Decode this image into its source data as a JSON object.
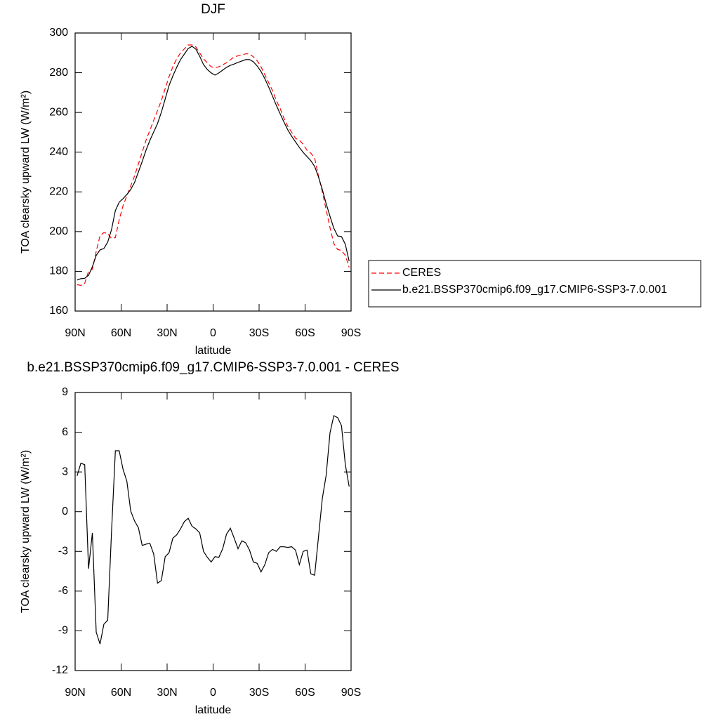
{
  "chart_data": [
    {
      "type": "line",
      "title": "DJF",
      "xlabel": "latitude",
      "ylabel": "TOA clearsky upward LW (W/m²)",
      "x": [
        88.75,
        86.25,
        83.75,
        81.25,
        78.75,
        76.25,
        73.75,
        71.25,
        68.75,
        66.25,
        63.75,
        61.25,
        58.75,
        56.25,
        53.75,
        51.25,
        48.75,
        46.25,
        43.75,
        41.25,
        38.75,
        36.25,
        33.75,
        31.25,
        28.75,
        26.25,
        23.75,
        21.25,
        18.75,
        16.25,
        13.75,
        11.25,
        8.75,
        6.25,
        3.75,
        1.25,
        -1.25,
        -3.75,
        -6.25,
        -8.75,
        -11.25,
        -13.75,
        -16.25,
        -18.75,
        -21.25,
        -23.75,
        -26.25,
        -28.75,
        -31.25,
        -33.75,
        -36.25,
        -38.75,
        -41.25,
        -43.75,
        -46.25,
        -48.75,
        -51.25,
        -53.75,
        -56.25,
        -58.75,
        -61.25,
        -63.75,
        -66.25,
        -68.75,
        -71.25,
        -73.75,
        -76.25,
        -78.75,
        -81.25,
        -83.75,
        -86.25,
        -88.75
      ],
      "xlim": [
        90,
        -90
      ],
      "xticks": [
        {
          "value": 90,
          "label": "90N"
        },
        {
          "value": 60,
          "label": "60N"
        },
        {
          "value": 30,
          "label": "30N"
        },
        0,
        {
          "value": -30,
          "label": "30S"
        },
        {
          "value": -60,
          "label": "60S"
        },
        {
          "value": -90,
          "label": "90S"
        }
      ],
      "ylim": [
        160,
        300
      ],
      "yticks": [
        160,
        180,
        200,
        220,
        240,
        260,
        280,
        300
      ],
      "legend": "right",
      "series": [
        {
          "name": "CERES",
          "color": "#ff0000",
          "dashed": true,
          "values": [
            173.3,
            172.9,
            174,
            180,
            181,
            190,
            198,
            199.5,
            199,
            196.5,
            197,
            206,
            213,
            218,
            223,
            228,
            234,
            240,
            246,
            251,
            256,
            261,
            266,
            272,
            278,
            283,
            287,
            290,
            292,
            294,
            294,
            293,
            290,
            287,
            285,
            283,
            282.5,
            283,
            284,
            285,
            286.5,
            288,
            288.5,
            289,
            289.5,
            289.5,
            288,
            286,
            283,
            279,
            275,
            271,
            266,
            262,
            257,
            253,
            250,
            247,
            246,
            244,
            241,
            239.5,
            237,
            228,
            220,
            211,
            202,
            194,
            191,
            190.5,
            188,
            182
          ]
        },
        {
          "name": "b.e21.BSSP370cmip6.f09_g17.CMIP6-SSP3-7.0.001",
          "color": "#000000",
          "dashed": false,
          "values": [
            175.6,
            176.3,
            176.5,
            178,
            182.3,
            188,
            190.8,
            191.5,
            194.7,
            201,
            210.6,
            214.8,
            216.6,
            218.7,
            221.2,
            224.7,
            230,
            235.3,
            241,
            245.9,
            250.2,
            254.4,
            260.1,
            266.8,
            273.5,
            278.4,
            282.7,
            286.6,
            289.4,
            292.2,
            293.3,
            291.9,
            288.3,
            284.1,
            281.6,
            279.9,
            278.8,
            279.9,
            281.3,
            282.7,
            283.7,
            284.4,
            285.2,
            285.9,
            286.6,
            286.6,
            285.5,
            283.4,
            280.6,
            277,
            272.8,
            268.2,
            263.6,
            259.3,
            255.1,
            251.2,
            248,
            245.2,
            242.4,
            239.9,
            237.8,
            235.7,
            232.8,
            227.5,
            221.2,
            214.1,
            207.7,
            201.7,
            197.8,
            197.5,
            193.6,
            185.1
          ]
        }
      ]
    },
    {
      "type": "line",
      "title": "b.e21.BSSP370cmip6.f09_g17.CMIP6-SSP3-7.0.001 - CERES",
      "xlabel": "latitude",
      "ylabel": "TOA clearsky upward LW (W/m²)",
      "x": [
        88.75,
        86.25,
        83.75,
        81.25,
        78.75,
        76.25,
        73.75,
        71.25,
        68.75,
        66.25,
        63.75,
        61.25,
        58.75,
        56.25,
        53.75,
        51.25,
        48.75,
        46.25,
        43.75,
        41.25,
        38.75,
        36.25,
        33.75,
        31.25,
        28.75,
        26.25,
        23.75,
        21.25,
        18.75,
        16.25,
        13.75,
        11.25,
        8.75,
        6.25,
        3.75,
        1.25,
        -1.25,
        -3.75,
        -6.25,
        -8.75,
        -11.25,
        -13.75,
        -16.25,
        -18.75,
        -21.25,
        -23.75,
        -26.25,
        -28.75,
        -31.25,
        -33.75,
        -36.25,
        -38.75,
        -41.25,
        -43.75,
        -46.25,
        -48.75,
        -51.25,
        -53.75,
        -56.25,
        -58.75,
        -61.25,
        -63.75,
        -66.25,
        -68.75,
        -71.25,
        -73.75,
        -76.25,
        -78.75,
        -81.25,
        -83.75,
        -86.25,
        -88.75
      ],
      "xlim": [
        90,
        -90
      ],
      "xticks": [
        {
          "value": 90,
          "label": "90N"
        },
        {
          "value": 60,
          "label": "60N"
        },
        {
          "value": 30,
          "label": "30N"
        },
        0,
        {
          "value": -30,
          "label": "30S"
        },
        {
          "value": -60,
          "label": "60S"
        },
        {
          "value": -90,
          "label": "90S"
        }
      ],
      "ylim": [
        -12,
        9
      ],
      "yticks": [
        -12,
        -9,
        -6,
        -3,
        0,
        3,
        6,
        9
      ],
      "series": [
        {
          "color": "#000000",
          "dashed": false,
          "values": [
            2.7,
            3.66,
            3.55,
            -4.3,
            -1.6,
            -9.1,
            -10,
            -8.5,
            -8.2,
            -1.5,
            4.6,
            4.6,
            3.2,
            2.3,
            0.05,
            -0.7,
            -1.2,
            -2.55,
            -2.45,
            -2.4,
            -3.2,
            -5.4,
            -5.2,
            -3.4,
            -3.1,
            -2,
            -1.75,
            -1.3,
            -0.75,
            -0.5,
            -1.1,
            -1.3,
            -1.6,
            -3,
            -3.45,
            -3.8,
            -3.4,
            -3.45,
            -2.8,
            -1.7,
            -1.25,
            -2,
            -2.8,
            -2.2,
            -2.35,
            -2.9,
            -3.8,
            -3.9,
            -4.55,
            -4,
            -3.1,
            -2.85,
            -3,
            -2.65,
            -2.65,
            -2.7,
            -2.65,
            -2.9,
            -4,
            -3,
            -2.9,
            -4.7,
            -4.8,
            -1.9,
            1,
            2.75,
            5.95,
            7.25,
            7.1,
            6.5,
            3.55,
            1.9
          ]
        }
      ]
    }
  ]
}
